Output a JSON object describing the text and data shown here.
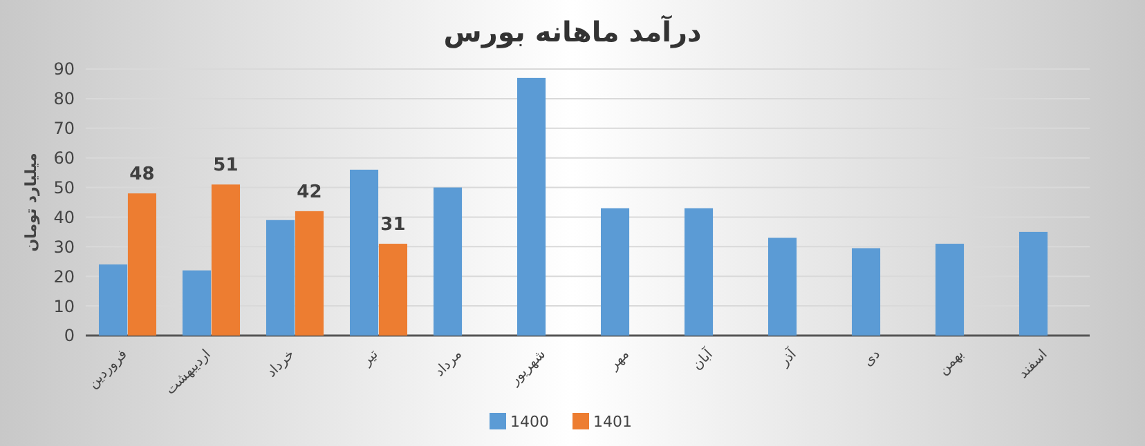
{
  "chart_data": {
    "type": "bar",
    "title": "درآمد ماهانه بورس",
    "ylabel": "میلیارد تومان",
    "categories": [
      "فروردین",
      "اردیبهشت",
      "خرداد",
      "تیر",
      "مرداد",
      "شهریور",
      "مهر",
      "آبان",
      "آذر",
      "دی",
      "بهمن",
      "اسفند"
    ],
    "series": [
      {
        "name": "1400",
        "color": "#5b9bd5",
        "values": [
          24,
          22,
          39,
          56,
          50,
          87,
          43,
          43,
          33,
          29.5,
          31,
          35
        ]
      },
      {
        "name": "1401",
        "color": "#ed7d31",
        "values": [
          48,
          51,
          42,
          31,
          null,
          null,
          null,
          null,
          null,
          null,
          null,
          null
        ],
        "value_labels": [
          "48",
          "51",
          "42",
          "31",
          null,
          null,
          null,
          null,
          null,
          null,
          null,
          null
        ]
      }
    ],
    "ylim": [
      0,
      90
    ],
    "yticks": [
      0,
      10,
      20,
      30,
      40,
      50,
      60,
      70,
      80,
      90
    ],
    "grid": "y",
    "legend": "bottom"
  }
}
